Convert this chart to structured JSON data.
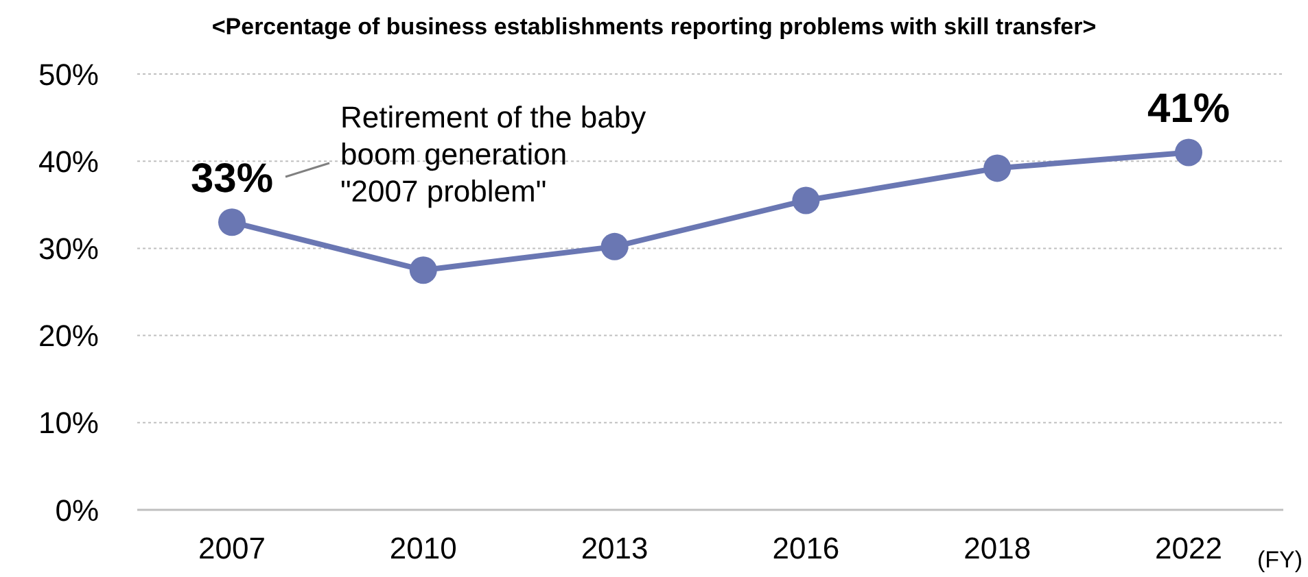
{
  "chart_data": {
    "type": "line",
    "title": "<Percentage of business establishments reporting problems with skill transfer>",
    "xlabel": "(FY)",
    "categories": [
      "2007",
      "2010",
      "2013",
      "2016",
      "2018",
      "2022"
    ],
    "series": [
      {
        "color": "#6a77b3",
        "values": [
          33,
          27.5,
          30.2,
          35.5,
          39.2,
          41
        ],
        "value_labels": [
          "33%",
          null,
          null,
          null,
          null,
          "41%"
        ]
      }
    ],
    "ylim": [
      0,
      50
    ],
    "yticks": [
      {
        "value": 0,
        "label": "0%"
      },
      {
        "value": 10,
        "label": "10%"
      },
      {
        "value": 20,
        "label": "20%"
      },
      {
        "value": 30,
        "label": "30%"
      },
      {
        "value": 40,
        "label": "40%"
      },
      {
        "value": 50,
        "label": "50%"
      }
    ],
    "grid": "y",
    "marker": "circle",
    "line_style": "solid",
    "legend": false,
    "annotations": [
      "Retirement of the baby\nboom generation\n\"2007 problem\""
    ]
  }
}
